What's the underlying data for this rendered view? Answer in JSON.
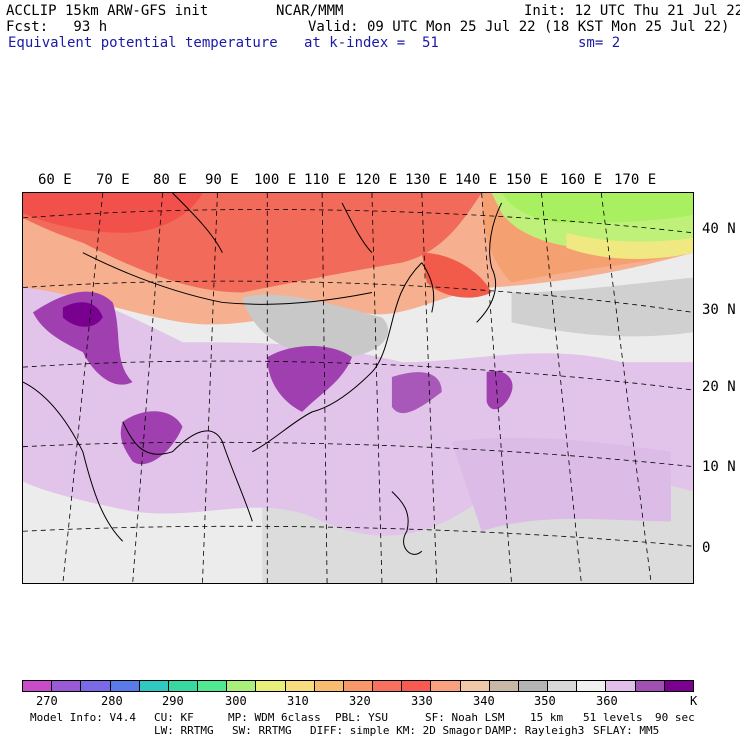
{
  "header": {
    "l1": "ACCLIP 15km ARW-GFS init",
    "l2": "Fcst:   93 h",
    "l3": "Equivalent potential temperature",
    "c1": "NCAR/MMM",
    "c2": "Valid: 09 UTC Mon 25 Jul 22 (18 KST Mon 25 Jul 22)",
    "c3a": "at k-index =  51",
    "c3b": "sm= 2",
    "r1": "Init: 12 UTC Thu 21 Jul 22"
  },
  "lon_labels": [
    "60 E",
    "70 E",
    "80 E",
    "90 E",
    "100 E",
    "110 E",
    "120 E",
    "130 E",
    "140 E",
    "150 E",
    "160 E",
    "170 E"
  ],
  "lat_labels": [
    "40 N",
    "30 N",
    "20 N",
    "10 N",
    "0"
  ],
  "colorbar": {
    "colors": [
      "#c84cc8",
      "#9a5ad6",
      "#7a6ae6",
      "#5a7ae8",
      "#30c8c0",
      "#38d8a0",
      "#50e890",
      "#a8f07a",
      "#e8f07a",
      "#f8dc80",
      "#f8bc70",
      "#f89868",
      "#f87060",
      "#f85a50",
      "#f8a080",
      "#f0c8a8",
      "#c8b8a8",
      "#b4b4b4",
      "#d8d8d8",
      "#f0f0f0",
      "#e0c0e8",
      "#a050b0",
      "#7a0090"
    ],
    "ticks": [
      "270",
      "280",
      "290",
      "300",
      "310",
      "320",
      "330",
      "340",
      "350",
      "360"
    ],
    "unit": "K"
  },
  "footer": {
    "a1": "Model Info: V4.4",
    "a2": "CU: KF",
    "a3": "MP: WDM 6class",
    "a4": "PBL: YSU",
    "a5": "SF: Noah LSM",
    "a6": "15 km",
    "a7": "51 levels",
    "a8": "90 sec",
    "b1": "LW: RRTMG",
    "b2": "SW: RRTMG",
    "b3": "DIFF: simple KM: 2D Smagor",
    "b4": "DAMP: Rayleigh3",
    "b5": "SFLAY: MM5"
  }
}
